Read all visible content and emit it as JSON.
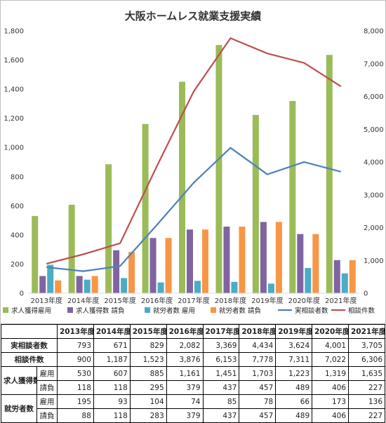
{
  "chart_data": {
    "type": "bar-line-combo",
    "title": "大阪ホームレス就業支援実績",
    "categories": [
      "2013年度",
      "2014年度",
      "2015年度",
      "2016年度",
      "2017年度",
      "2018年度",
      "2019年度",
      "2020年度",
      "2021年度"
    ],
    "y_left": {
      "min": 0,
      "max": 1800,
      "step": 200,
      "tick_labels": [
        "0",
        "200",
        "400",
        "600",
        "800",
        "1,000",
        "1,200",
        "1,400",
        "1,600",
        "1,800"
      ]
    },
    "y_right": {
      "min": 0,
      "max": 8000,
      "step": 1000,
      "tick_labels": [
        "0",
        "1,000",
        "2,000",
        "3,000",
        "4,000",
        "5,000",
        "6,000",
        "7,000",
        "8,000"
      ]
    },
    "grid": false,
    "legend_position": "bottom",
    "bar_series": [
      {
        "name": "求人獲得雇用",
        "color": "#9BBB59",
        "values": [
          530,
          607,
          885,
          1161,
          1451,
          1703,
          1223,
          1319,
          1635
        ]
      },
      {
        "name": "求人獲得数 請負",
        "color": "#8064A2",
        "values": [
          118,
          118,
          295,
          379,
          437,
          457,
          489,
          406,
          227
        ]
      },
      {
        "name": "就労者数 雇用",
        "color": "#4BACC6",
        "values": [
          195,
          93,
          104,
          74,
          85,
          78,
          66,
          173,
          136
        ]
      },
      {
        "name": "就労者数 請負",
        "color": "#F79646",
        "values": [
          88,
          118,
          283,
          379,
          437,
          457,
          489,
          406,
          227
        ]
      }
    ],
    "line_series": [
      {
        "name": "実相談者数",
        "color": "#4F81BD",
        "axis": "right",
        "values": [
          793,
          671,
          829,
          2082,
          3369,
          4434,
          3624,
          4001,
          3705
        ]
      },
      {
        "name": "相談件数",
        "color": "#C0504D",
        "axis": "right",
        "values": [
          900,
          1187,
          1523,
          3876,
          6153,
          7778,
          7311,
          7022,
          6306
        ]
      }
    ]
  },
  "table": {
    "years": [
      "2013年度",
      "2014年度",
      "2015年度",
      "2016年度",
      "2017年度",
      "2018年度",
      "2019年度",
      "2020年度",
      "2021年度"
    ],
    "rows": [
      {
        "group": "実相談者数",
        "sub": "",
        "values": [
          "793",
          "671",
          "829",
          "2,082",
          "3,369",
          "4,434",
          "3,624",
          "4,001",
          "3,705"
        ]
      },
      {
        "group": "相談件数",
        "sub": "",
        "values": [
          "900",
          "1,187",
          "1,523",
          "3,876",
          "6,153",
          "7,778",
          "7,311",
          "7,022",
          "6,306"
        ]
      },
      {
        "group": "求人獲得数",
        "sub": "雇用",
        "values": [
          "530",
          "607",
          "885",
          "1,161",
          "1,451",
          "1,703",
          "1,223",
          "1,319",
          "1,635"
        ]
      },
      {
        "group": "",
        "sub": "請負",
        "values": [
          "118",
          "118",
          "295",
          "379",
          "437",
          "457",
          "489",
          "406",
          "227"
        ]
      },
      {
        "group": "就労者数",
        "sub": "雇用",
        "values": [
          "195",
          "93",
          "104",
          "74",
          "85",
          "78",
          "66",
          "173",
          "136"
        ]
      },
      {
        "group": "",
        "sub": "請負",
        "values": [
          "88",
          "118",
          "283",
          "379",
          "437",
          "457",
          "489",
          "406",
          "227"
        ]
      }
    ]
  }
}
